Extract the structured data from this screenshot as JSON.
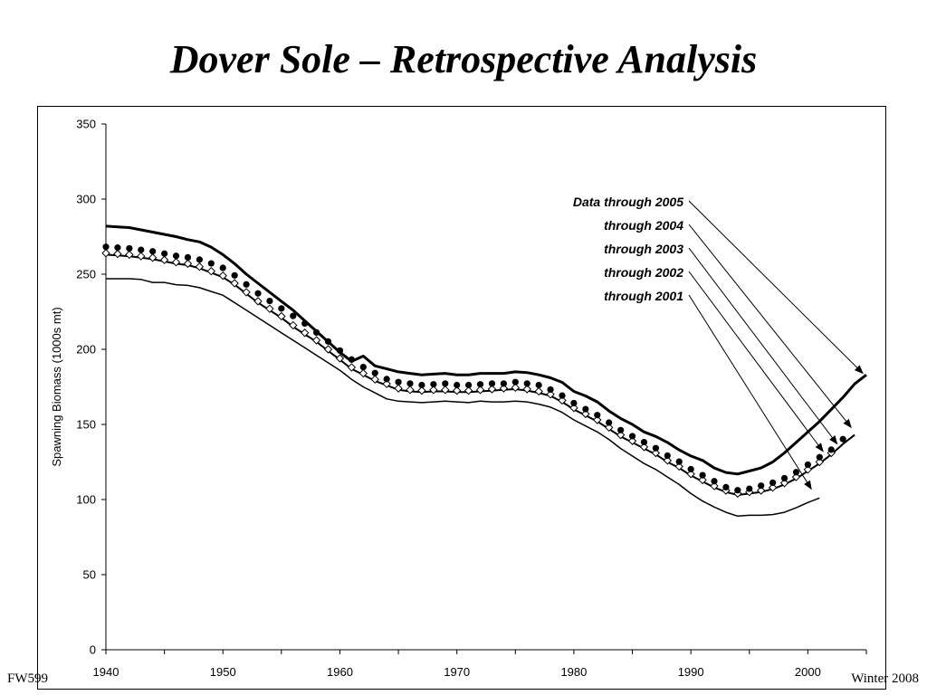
{
  "slide": {
    "title": "Dover Sole – Retrospective Analysis",
    "footer_left": "FW599",
    "footer_right": "Winter 2008"
  },
  "chart_data": {
    "type": "line",
    "title": "",
    "xlabel": "",
    "ylabel": "Spawning Biomass (1000s mt)",
    "xlim": [
      1940,
      2005
    ],
    "ylim": [
      0,
      350
    ],
    "x_ticks": [
      1940,
      1950,
      1960,
      1970,
      1980,
      1990,
      2000
    ],
    "y_ticks": [
      0,
      50,
      100,
      150,
      200,
      250,
      300,
      350
    ],
    "grid": false,
    "series": [
      {
        "name": "Data through 2005",
        "style": "thick-line",
        "color": "#000000",
        "x": [
          1940,
          1941,
          1942,
          1943,
          1944,
          1945,
          1946,
          1947,
          1948,
          1949,
          1950,
          1951,
          1952,
          1953,
          1954,
          1955,
          1956,
          1957,
          1958,
          1959,
          1960,
          1961,
          1962,
          1963,
          1964,
          1965,
          1966,
          1967,
          1968,
          1969,
          1970,
          1971,
          1972,
          1973,
          1974,
          1975,
          1976,
          1977,
          1978,
          1979,
          1980,
          1981,
          1982,
          1983,
          1984,
          1985,
          1986,
          1987,
          1988,
          1989,
          1990,
          1991,
          1992,
          1993,
          1994,
          1995,
          1996,
          1997,
          1998,
          1999,
          2000,
          2001,
          2002,
          2003,
          2004,
          2005
        ],
        "y": [
          282,
          281.5,
          281,
          279.5,
          278,
          276.5,
          275,
          273,
          271.5,
          268,
          263,
          257,
          250,
          244,
          238,
          232,
          226,
          219,
          212,
          205,
          198,
          192,
          195.5,
          189,
          187,
          185,
          184,
          183,
          183.5,
          184,
          183,
          183,
          184,
          184,
          184,
          185,
          184.5,
          183,
          181,
          178,
          172,
          169,
          165,
          159,
          154,
          150,
          145,
          142,
          138,
          133,
          129,
          126,
          121,
          118,
          117,
          119,
          121,
          125,
          131,
          138,
          145,
          152,
          160,
          168,
          177,
          183
        ]
      },
      {
        "name": "through 2004",
        "style": "filled-circle",
        "color": "#000000",
        "x": [
          1940,
          1941,
          1942,
          1943,
          1944,
          1945,
          1946,
          1947,
          1948,
          1949,
          1950,
          1951,
          1952,
          1953,
          1954,
          1955,
          1956,
          1957,
          1958,
          1959,
          1960,
          1961,
          1962,
          1963,
          1964,
          1965,
          1966,
          1967,
          1968,
          1969,
          1970,
          1971,
          1972,
          1973,
          1974,
          1975,
          1976,
          1977,
          1978,
          1979,
          1980,
          1981,
          1982,
          1983,
          1984,
          1985,
          1986,
          1987,
          1988,
          1989,
          1990,
          1991,
          1992,
          1993,
          1994,
          1995,
          1996,
          1997,
          1998,
          1999,
          2000,
          2001,
          2002,
          2003
        ],
        "y": [
          267,
          266.5,
          266,
          265,
          264,
          262.5,
          261,
          260,
          258.5,
          256,
          253,
          248,
          242,
          236,
          231,
          226,
          221,
          216,
          210,
          204,
          198,
          192,
          187,
          183,
          179,
          177,
          176,
          175,
          175.5,
          176,
          175,
          175,
          175.5,
          176,
          176,
          177,
          176,
          175,
          172,
          168,
          163,
          159,
          155,
          150,
          145,
          141,
          137,
          133,
          128,
          124,
          119,
          115,
          111,
          107,
          105,
          106,
          108,
          110,
          113,
          117,
          122,
          127,
          132,
          139
        ]
      },
      {
        "name": "through 2003",
        "style": "open-diamond",
        "color": "#000000",
        "x": [
          1940,
          1941,
          1942,
          1943,
          1944,
          1945,
          1946,
          1947,
          1948,
          1949,
          1950,
          1951,
          1952,
          1953,
          1954,
          1955,
          1956,
          1957,
          1958,
          1959,
          1960,
          1961,
          1962,
          1963,
          1964,
          1965,
          1966,
          1967,
          1968,
          1969,
          1970,
          1971,
          1972,
          1973,
          1974,
          1975,
          1976,
          1977,
          1978,
          1979,
          1980,
          1981,
          1982,
          1983,
          1984,
          1985,
          1986,
          1987,
          1988,
          1989,
          1990,
          1991,
          1992,
          1993,
          1994,
          1995,
          1996,
          1997,
          1998,
          1999,
          2000,
          2001,
          2002
        ],
        "y": [
          264,
          263.5,
          263,
          262,
          261,
          259.5,
          258,
          257,
          255,
          252,
          249,
          244,
          238,
          232,
          227,
          222,
          216,
          211,
          206,
          200,
          194,
          188,
          184,
          180,
          177,
          174,
          173,
          172.5,
          173,
          173,
          172.5,
          172.5,
          173,
          173.5,
          174,
          174.5,
          173.5,
          172,
          170,
          166,
          161,
          157,
          153,
          148,
          143,
          139,
          135,
          131,
          126,
          122,
          117,
          113,
          109,
          106,
          104,
          105,
          106,
          108,
          111,
          115,
          120,
          125,
          131
        ]
      },
      {
        "name": "through 2002",
        "style": "line",
        "color": "#000000",
        "x": [
          1940,
          1941,
          1942,
          1943,
          1944,
          1945,
          1946,
          1947,
          1948,
          1949,
          1950,
          1951,
          1952,
          1953,
          1954,
          1955,
          1956,
          1957,
          1958,
          1959,
          1960,
          1961,
          1962,
          1963,
          1964,
          1965,
          1966,
          1967,
          1968,
          1969,
          1970,
          1971,
          1972,
          1973,
          1974,
          1975,
          1976,
          1977,
          1978,
          1979,
          1980,
          1981,
          1982,
          1983,
          1984,
          1985,
          1986,
          1987,
          1988,
          1989,
          1990,
          1991,
          1992,
          1993,
          1994,
          1995,
          1996,
          1997,
          1998,
          1999,
          2000,
          2001,
          2002,
          2003,
          2004
        ],
        "y": [
          263,
          262.5,
          262,
          261,
          260,
          258.5,
          257,
          256,
          254,
          251,
          248,
          243,
          237,
          231,
          226,
          221,
          215,
          210,
          205,
          199,
          193,
          187,
          183,
          179,
          176,
          173,
          172,
          171.5,
          172,
          172,
          171.5,
          171.5,
          172,
          172.5,
          173,
          173.5,
          172.5,
          171,
          169,
          165,
          160,
          156,
          152,
          147,
          142,
          138,
          134,
          130,
          125,
          121,
          116,
          112,
          108,
          105,
          103,
          104,
          105,
          107,
          110,
          114,
          119,
          124,
          130,
          137,
          143
        ]
      },
      {
        "name": "through 2001",
        "style": "thin-line",
        "color": "#000000",
        "x": [
          1940,
          1941,
          1942,
          1943,
          1944,
          1945,
          1946,
          1947,
          1948,
          1949,
          1950,
          1951,
          1952,
          1953,
          1954,
          1955,
          1956,
          1957,
          1958,
          1959,
          1960,
          1961,
          1962,
          1963,
          1964,
          1965,
          1966,
          1967,
          1968,
          1969,
          1970,
          1971,
          1972,
          1973,
          1974,
          1975,
          1976,
          1977,
          1978,
          1979,
          1980,
          1981,
          1982,
          1983,
          1984,
          1985,
          1986,
          1987,
          1988,
          1989,
          1990,
          1991,
          1992,
          1993,
          1994,
          1995,
          1996,
          1997,
          1998,
          1999,
          2000,
          2001
        ],
        "y": [
          247,
          247,
          247,
          246.5,
          244.5,
          244.5,
          243,
          242.5,
          241,
          238.5,
          236,
          231,
          226,
          221,
          216,
          211,
          206,
          201,
          196,
          191,
          186,
          180,
          175,
          171,
          167,
          165.5,
          165,
          164.5,
          165,
          165.5,
          165,
          164.5,
          165.5,
          165,
          165,
          165.5,
          165,
          163.5,
          161.5,
          158,
          153,
          149,
          145,
          140,
          134,
          129,
          124,
          120,
          115,
          110,
          104,
          99,
          95,
          91.5,
          89,
          89.5,
          89.5,
          90,
          91.5,
          94.5,
          98,
          101
        ]
      }
    ],
    "annotations": [
      {
        "label": "Data through 2005",
        "bold": true,
        "target_x": 2004.7,
        "target_y": 184
      },
      {
        "label": "through 2004",
        "bold": false,
        "target_x": 2003.7,
        "target_y": 148
      },
      {
        "label": "through 2003",
        "bold": false,
        "target_x": 2002.5,
        "target_y": 137
      },
      {
        "label": "through 2002",
        "bold": false,
        "target_x": 2001.3,
        "target_y": 132
      },
      {
        "label": "through 2001",
        "bold": false,
        "target_x": 2000.3,
        "target_y": 107
      }
    ]
  }
}
